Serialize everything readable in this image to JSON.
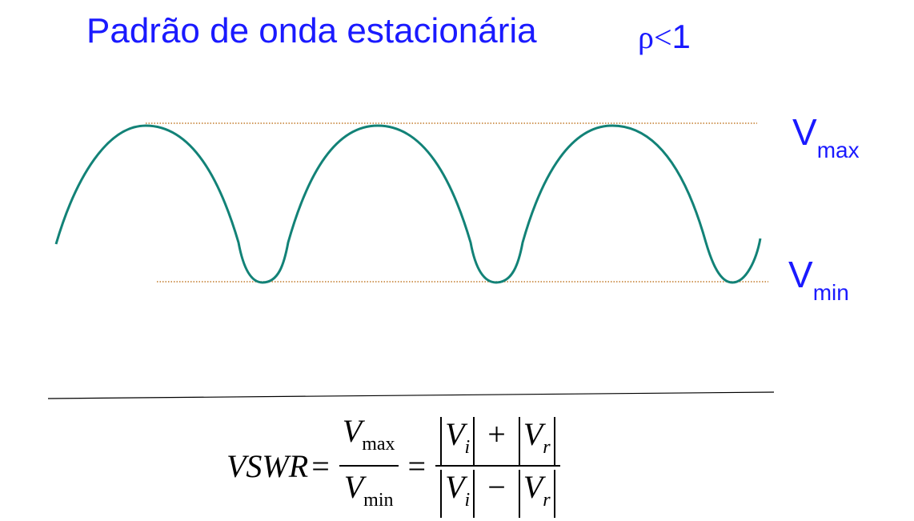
{
  "title": "Padrão de onda estacionária",
  "condition": {
    "symbol": "ρ",
    "relation": "<",
    "value": "1"
  },
  "labels": {
    "vmax": {
      "base": "V",
      "sub": "max"
    },
    "vmin": {
      "base": "V",
      "sub": "min"
    }
  },
  "colors": {
    "text": "#1a1aff",
    "wave": "#128277",
    "guide": "#c27a2a",
    "formula": "#000000"
  },
  "formula": {
    "lhs": "VSWR",
    "eq": "=",
    "frac1": {
      "num": "V",
      "num_sub": "max",
      "den": "V",
      "den_sub": "min"
    },
    "frac2": {
      "v": "V",
      "i": "i",
      "r": "r",
      "plus": "+",
      "minus": "−"
    }
  }
}
